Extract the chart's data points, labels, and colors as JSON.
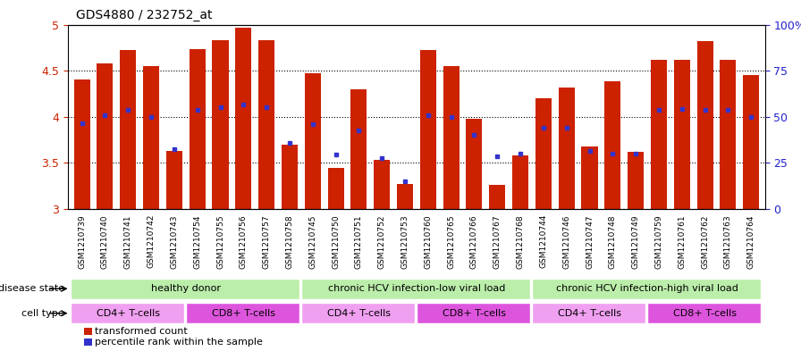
{
  "title": "GDS4880 / 232752_at",
  "samples": [
    "GSM1210739",
    "GSM1210740",
    "GSM1210741",
    "GSM1210742",
    "GSM1210743",
    "GSM1210754",
    "GSM1210755",
    "GSM1210756",
    "GSM1210757",
    "GSM1210758",
    "GSM1210745",
    "GSM1210750",
    "GSM1210751",
    "GSM1210752",
    "GSM1210753",
    "GSM1210760",
    "GSM1210765",
    "GSM1210766",
    "GSM1210767",
    "GSM1210768",
    "GSM1210744",
    "GSM1210746",
    "GSM1210747",
    "GSM1210748",
    "GSM1210749",
    "GSM1210759",
    "GSM1210761",
    "GSM1210762",
    "GSM1210763",
    "GSM1210764"
  ],
  "bar_heights": [
    4.4,
    4.58,
    4.72,
    4.55,
    3.63,
    4.73,
    4.83,
    4.97,
    4.83,
    3.7,
    4.47,
    3.44,
    4.3,
    3.53,
    3.27,
    4.72,
    4.55,
    3.98,
    3.26,
    3.58,
    4.2,
    4.32,
    3.68,
    4.38,
    3.62,
    4.62,
    4.62,
    4.82,
    4.62,
    4.45
  ],
  "percentile_values": [
    3.93,
    4.02,
    4.07,
    4.0,
    3.65,
    4.07,
    4.1,
    4.13,
    4.1,
    3.72,
    3.92,
    3.59,
    3.85,
    3.55,
    3.3,
    4.02,
    4.0,
    3.8,
    3.57,
    3.6,
    3.88,
    3.88,
    3.63,
    3.6,
    3.6,
    4.07,
    4.08,
    4.07,
    4.07,
    4.0
  ],
  "ylim": [
    3.0,
    5.0
  ],
  "yticks": [
    3.0,
    3.5,
    4.0,
    4.5,
    5.0
  ],
  "ytick_labels_left": [
    "3",
    "3.5",
    "4",
    "4.5",
    "5"
  ],
  "ytick_labels_right": [
    "0",
    "25",
    "50",
    "75",
    "100%"
  ],
  "bar_color": "#cc2200",
  "dot_color": "#3333cc",
  "ds_groups": [
    {
      "label": "healthy donor",
      "start": 0,
      "end": 10,
      "color": "#bbeeaa"
    },
    {
      "label": "chronic HCV infection-low viral load",
      "start": 10,
      "end": 20,
      "color": "#bbeeaa"
    },
    {
      "label": "chronic HCV infection-high viral load",
      "start": 20,
      "end": 30,
      "color": "#bbeeaa"
    }
  ],
  "ct_groups": [
    {
      "label": "CD4+ T-cells",
      "start": 0,
      "end": 5,
      "color": "#f0a0f0"
    },
    {
      "label": "CD8+ T-cells",
      "start": 5,
      "end": 10,
      "color": "#dd55dd"
    },
    {
      "label": "CD4+ T-cells",
      "start": 10,
      "end": 15,
      "color": "#f0a0f0"
    },
    {
      "label": "CD8+ T-cells",
      "start": 15,
      "end": 20,
      "color": "#dd55dd"
    },
    {
      "label": "CD4+ T-cells",
      "start": 20,
      "end": 25,
      "color": "#f0a0f0"
    },
    {
      "label": "CD8+ T-cells",
      "start": 25,
      "end": 30,
      "color": "#dd55dd"
    }
  ]
}
